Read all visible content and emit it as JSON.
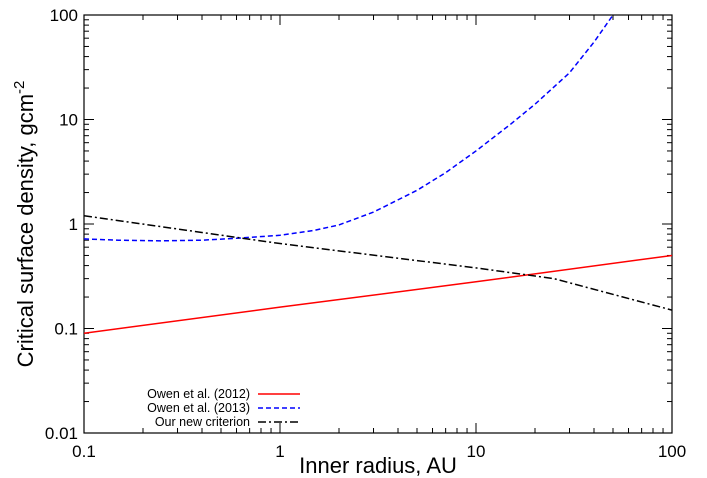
{
  "chart_data": {
    "type": "line",
    "xscale": "log",
    "yscale": "log",
    "xlim": [
      0.1,
      100
    ],
    "ylim": [
      0.01,
      100
    ],
    "xlabel": "Inner radius, AU",
    "ylabel_main": "Critical surface density, gcm",
    "ylabel_sup": "-2",
    "x_ticks": [
      0.1,
      1,
      10,
      100
    ],
    "x_tick_labels": [
      "0.1",
      "1",
      "10",
      "100"
    ],
    "y_ticks": [
      0.01,
      0.1,
      1,
      10,
      100
    ],
    "y_tick_labels": [
      "0.01",
      "0.1",
      "1",
      "10",
      "100"
    ],
    "grid": false,
    "legend_position": "bottom-left",
    "series": [
      {
        "name": "Owen et al. (2012)",
        "color": "#ff0000",
        "dash": "solid",
        "x": [
          0.1,
          1,
          10,
          100
        ],
        "y": [
          0.09,
          0.16,
          0.28,
          0.5
        ]
      },
      {
        "name": "Owen et al. (2013)",
        "color": "#0000ff",
        "dash": "dashed",
        "x": [
          0.1,
          0.15,
          0.25,
          0.4,
          0.6,
          1,
          1.5,
          2,
          3,
          5,
          7,
          10,
          15,
          20,
          30,
          40,
          50
        ],
        "y": [
          0.72,
          0.7,
          0.69,
          0.7,
          0.73,
          0.78,
          0.87,
          0.98,
          1.3,
          2.1,
          3.1,
          5.0,
          9.0,
          14,
          28,
          55,
          100
        ]
      },
      {
        "name": "Our new criterion",
        "color": "#000000",
        "dash": "dash-dot",
        "x": [
          0.1,
          1,
          10,
          25,
          100
        ],
        "y": [
          1.2,
          0.65,
          0.38,
          0.3,
          0.15
        ]
      }
    ]
  }
}
